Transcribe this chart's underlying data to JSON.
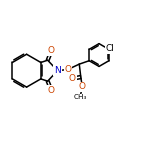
{
  "bg_color": "#ffffff",
  "bond_color": "#000000",
  "atom_colors": {
    "O": "#cc4400",
    "N": "#0000cc",
    "Cl": "#000000",
    "C": "#000000"
  },
  "font_size_atoms": 6.5,
  "line_width": 1.1,
  "dbo": 0.013
}
